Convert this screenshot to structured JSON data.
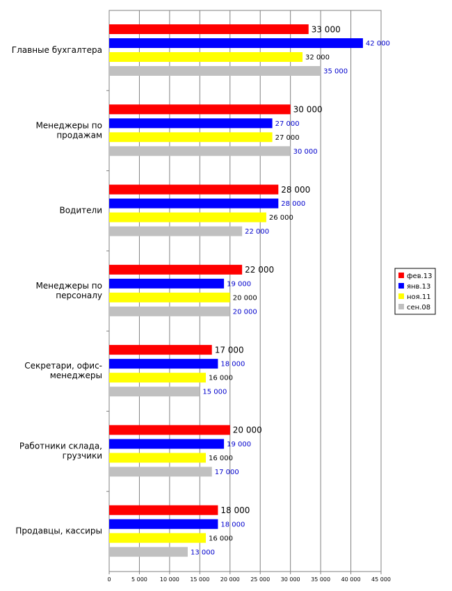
{
  "chart_data": {
    "type": "bar",
    "orientation": "horizontal",
    "categories": [
      [
        "Главные бухгалтера"
      ],
      [
        "Менеджеры по",
        "продажам"
      ],
      [
        "Водители"
      ],
      [
        "Менеджеры по",
        "персоналу"
      ],
      [
        "Секретари, офис-",
        "менеджеры"
      ],
      [
        "Работники склада,",
        "грузчики"
      ],
      [
        "Продавцы, кассиры"
      ]
    ],
    "series": [
      {
        "name": "фев.13",
        "color": "#ff0000",
        "label_color": "#000000",
        "values": [
          33000,
          30000,
          28000,
          22000,
          17000,
          20000,
          18000
        ],
        "labels": [
          "33 000",
          "30 000",
          "28 000",
          "22 000",
          "17 000",
          "20 000",
          "18 000"
        ]
      },
      {
        "name": "янв.13",
        "color": "#0000ff",
        "label_color": "#0000cc",
        "values": [
          42000,
          27000,
          28000,
          19000,
          18000,
          19000,
          18000
        ],
        "labels": [
          "42 000",
          "27 000",
          "28 000",
          "19 000",
          "18 000",
          "19 000",
          "18 000"
        ]
      },
      {
        "name": "ноя.11",
        "color": "#ffff00",
        "label_color": "#000000",
        "values": [
          32000,
          27000,
          26000,
          20000,
          16000,
          16000,
          16000
        ],
        "labels": [
          "32 000",
          "27 000",
          "26 000",
          "20 000",
          "16 000",
          "16 000",
          "16 000"
        ]
      },
      {
        "name": "сен.08",
        "color": "#c0c0c0",
        "label_color": "#0000cc",
        "values": [
          35000,
          30000,
          22000,
          20000,
          15000,
          17000,
          13000
        ],
        "labels": [
          "35 000",
          "30 000",
          "22 000",
          "20 000",
          "15 000",
          "17 000",
          "13 000"
        ]
      }
    ],
    "xlim": [
      0,
      45000
    ],
    "xticks": [
      0,
      5000,
      10000,
      15000,
      20000,
      25000,
      30000,
      35000,
      40000,
      45000
    ],
    "xtick_labels": [
      "0",
      "5 000",
      "10 000",
      "15 000",
      "20 000",
      "25 000",
      "30 000",
      "35 000",
      "40 000",
      "45 000"
    ],
    "grid": "vertical",
    "legend": "right"
  }
}
